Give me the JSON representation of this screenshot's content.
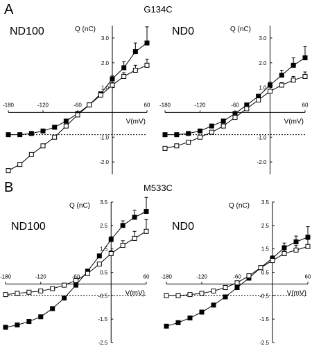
{
  "panels": [
    {
      "letter": "A",
      "title": "G134C"
    },
    {
      "letter": "B",
      "title": "M533C"
    }
  ],
  "chart_data": [
    {
      "type": "line",
      "panel": "A",
      "title": "G134C",
      "condition": "ND100",
      "xlabel": "V(mV)",
      "ylabel": "Q (nC)",
      "xlim": [
        -180,
        60
      ],
      "ylim": [
        -2.5,
        3.5
      ],
      "x_ticks": [
        "-180",
        "-120",
        "-60",
        "60"
      ],
      "y_ticks": [
        "3.0",
        "2.0",
        "1.0",
        "-1.0",
        "-2.0"
      ],
      "reference_line_y": -0.9,
      "series": [
        {
          "marker": "filled-square",
          "x": [
            -180,
            -160,
            -140,
            -120,
            -100,
            -80,
            -60,
            -40,
            -20,
            0,
            20,
            40,
            60
          ],
          "y": [
            -0.9,
            -0.9,
            -0.85,
            -0.75,
            -0.6,
            -0.35,
            -0.05,
            0.3,
            0.75,
            1.35,
            1.8,
            2.45,
            2.8
          ],
          "error": [
            0.05,
            0.05,
            0.05,
            0.05,
            0.05,
            0.05,
            0.05,
            0.05,
            0.08,
            0.12,
            0.25,
            0.35,
            0.65
          ]
        },
        {
          "marker": "open-square",
          "x": [
            -180,
            -160,
            -140,
            -120,
            -100,
            -80,
            -60,
            -40,
            -20,
            0,
            20,
            40,
            60
          ],
          "y": [
            -2.35,
            -2.1,
            -1.7,
            -1.35,
            -1.0,
            -0.55,
            -0.1,
            0.3,
            0.7,
            1.1,
            1.45,
            1.7,
            1.9
          ],
          "error": [
            0.05,
            0.05,
            0.05,
            0.05,
            0.05,
            0.05,
            0.05,
            0.05,
            0.05,
            0.1,
            0.15,
            0.2,
            0.25
          ]
        }
      ]
    },
    {
      "type": "line",
      "panel": "A",
      "title": "G134C",
      "condition": "ND0",
      "xlabel": "V(mV)",
      "ylabel": "Q (nC)",
      "xlim": [
        -180,
        60
      ],
      "ylim": [
        -2.5,
        3.5
      ],
      "x_ticks": [
        "-180",
        "-120",
        "-60",
        "60"
      ],
      "y_ticks": [
        "3.0",
        "2.0",
        "1.0",
        "-1.0",
        "-2.0"
      ],
      "reference_line_y": -0.9,
      "series": [
        {
          "marker": "filled-square",
          "x": [
            -180,
            -160,
            -140,
            -120,
            -100,
            -80,
            -60,
            -40,
            -20,
            0,
            20,
            40,
            60
          ],
          "y": [
            -0.9,
            -0.9,
            -0.85,
            -0.75,
            -0.55,
            -0.35,
            -0.05,
            0.3,
            0.65,
            1.1,
            1.5,
            1.9,
            2.2
          ],
          "error": [
            0.05,
            0.05,
            0.05,
            0.05,
            0.05,
            0.05,
            0.05,
            0.05,
            0.08,
            0.12,
            0.2,
            0.3,
            0.45
          ]
        },
        {
          "marker": "open-square",
          "x": [
            -180,
            -160,
            -140,
            -120,
            -100,
            -80,
            -60,
            -40,
            -20,
            0,
            20,
            40,
            60
          ],
          "y": [
            -1.45,
            -1.35,
            -1.2,
            -1.0,
            -0.8,
            -0.55,
            -0.2,
            0.15,
            0.5,
            0.85,
            1.1,
            1.3,
            1.45
          ],
          "error": [
            0.05,
            0.05,
            0.05,
            0.05,
            0.05,
            0.05,
            0.05,
            0.05,
            0.05,
            0.08,
            0.1,
            0.15,
            0.18
          ]
        }
      ]
    },
    {
      "type": "line",
      "panel": "B",
      "title": "M533C",
      "condition": "ND100",
      "xlabel": "V(mV)",
      "ylabel": "Q (nC)",
      "xlim": [
        -180,
        60
      ],
      "ylim": [
        -2.5,
        3.5
      ],
      "x_ticks": [
        "-180",
        "-120",
        "-60",
        "60"
      ],
      "y_ticks": [
        "3.5",
        "2.5",
        "1.5",
        "0.5",
        "-0.5",
        "-1.5",
        "-2.5"
      ],
      "reference_line_y": -0.5,
      "series": [
        {
          "marker": "filled-square",
          "x": [
            -180,
            -160,
            -140,
            -120,
            -100,
            -80,
            -60,
            -40,
            -20,
            0,
            20,
            40,
            60
          ],
          "y": [
            -1.85,
            -1.75,
            -1.6,
            -1.4,
            -1.05,
            -0.6,
            -0.05,
            0.55,
            1.2,
            1.9,
            2.5,
            2.85,
            3.1
          ],
          "error": [
            0.05,
            0.05,
            0.05,
            0.05,
            0.05,
            0.05,
            0.05,
            0.05,
            0.08,
            0.12,
            0.2,
            0.3,
            0.6
          ]
        },
        {
          "marker": "open-square",
          "x": [
            -180,
            -160,
            -140,
            -120,
            -100,
            -80,
            -60,
            -40,
            -20,
            0,
            20,
            40,
            60
          ],
          "y": [
            -0.45,
            -0.4,
            -0.35,
            -0.3,
            -0.2,
            -0.05,
            0.15,
            0.45,
            0.85,
            1.3,
            1.65,
            1.95,
            2.25
          ],
          "error": [
            0.05,
            0.05,
            0.05,
            0.05,
            0.05,
            0.05,
            0.05,
            0.05,
            0.08,
            0.12,
            0.2,
            0.3,
            0.5
          ]
        }
      ]
    },
    {
      "type": "line",
      "panel": "B",
      "title": "M533C",
      "condition": "ND0",
      "xlabel": "V(mV)",
      "ylabel": "Q (nC)",
      "xlim": [
        -180,
        60
      ],
      "ylim": [
        -2.5,
        3.5
      ],
      "x_ticks": [
        "-180",
        "-120",
        "-60",
        "60"
      ],
      "y_ticks": [
        "3.5",
        "2.5",
        "1.5",
        "0.5",
        "-0.5",
        "-1.5",
        "-2.5"
      ],
      "reference_line_y": -0.5,
      "series": [
        {
          "marker": "filled-square",
          "x": [
            -180,
            -160,
            -140,
            -120,
            -100,
            -80,
            -60,
            -40,
            -20,
            0,
            20,
            40,
            60
          ],
          "y": [
            -1.8,
            -1.65,
            -1.45,
            -1.2,
            -0.9,
            -0.55,
            -0.15,
            0.25,
            0.7,
            1.1,
            1.55,
            1.8,
            2.0
          ],
          "error": [
            0.05,
            0.05,
            0.05,
            0.05,
            0.05,
            0.05,
            0.05,
            0.05,
            0.08,
            0.1,
            0.2,
            0.25,
            0.45
          ]
        },
        {
          "marker": "open-square",
          "x": [
            -180,
            -160,
            -140,
            -120,
            -100,
            -80,
            -60,
            -40,
            -20,
            0,
            20,
            40,
            60
          ],
          "y": [
            -0.5,
            -0.5,
            -0.45,
            -0.4,
            -0.3,
            -0.15,
            0.05,
            0.35,
            0.7,
            1.0,
            1.3,
            1.45,
            1.6
          ],
          "error": [
            0.05,
            0.05,
            0.05,
            0.05,
            0.05,
            0.05,
            0.05,
            0.05,
            0.08,
            0.1,
            0.15,
            0.2,
            0.3
          ]
        }
      ]
    }
  ]
}
